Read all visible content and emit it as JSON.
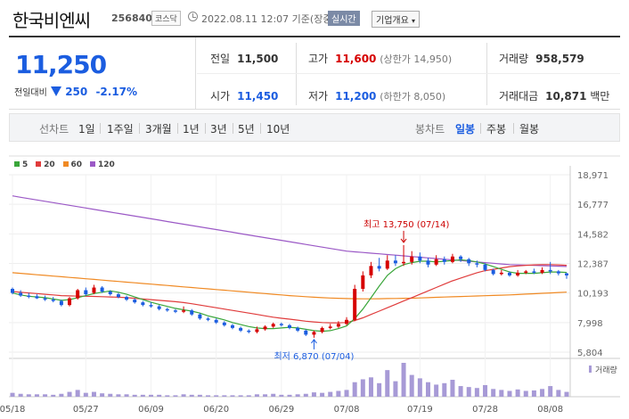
{
  "header": {
    "name": "한국비엔씨",
    "code": "256840",
    "market": "코스닥",
    "date": "2022.08.11 12:07 기준(장중)",
    "realtime": "실시간",
    "company_info": "기업개요"
  },
  "summary": {
    "price": "11,250",
    "change_label": "전일대비",
    "change": "250",
    "change_pct": "-2.17%",
    "prev_label": "전일",
    "prev": "11,500",
    "high_label": "고가",
    "high": "11,600",
    "upper_limit": "(상한가 14,950)",
    "volume_label": "거래량",
    "volume": "958,579",
    "open_label": "시가",
    "open": "11,450",
    "low_label": "저가",
    "low": "11,200",
    "lower_limit": "(하한가 8,050)",
    "amount_label": "거래대금",
    "amount": "10,871",
    "amount_unit": "백만"
  },
  "period_tabs": {
    "label": "선차트",
    "items": [
      "1일",
      "1주일",
      "3개월",
      "1년",
      "3년",
      "5년",
      "10년"
    ]
  },
  "candle_tabs": {
    "label": "봉차트",
    "items": [
      "일봉",
      "주봉",
      "월봉"
    ],
    "active": "일봉"
  },
  "colors": {
    "up": "#d60000",
    "down": "#1b5de0",
    "ma5": "#3aa63a",
    "ma20": "#e03c3c",
    "ma60": "#f08a24",
    "ma120": "#9b59c6"
  },
  "chart_data": {
    "type": "candlestick",
    "legend": [
      "5",
      "20",
      "60",
      "120"
    ],
    "y_ticks": [
      "18,971",
      "16,777",
      "14,582",
      "12,387",
      "10,193",
      "7,998",
      "5,804"
    ],
    "ylim": [
      5804,
      18971
    ],
    "x_ticks": [
      "05/18",
      "05/27",
      "06/09",
      "06/20",
      "06/29",
      "07/08",
      "07/19",
      "07/28",
      "08/08"
    ],
    "annotations": {
      "high": "최고 13,750 (07/14)",
      "low": "최저 6,870 (07/04)"
    },
    "volume_label": "거래량",
    "candles": [
      [
        10500,
        10200,
        10600,
        10100
      ],
      [
        10200,
        10000,
        10400,
        9900
      ],
      [
        10000,
        9900,
        10200,
        9800
      ],
      [
        9950,
        9800,
        10100,
        9750
      ],
      [
        9800,
        9700,
        10000,
        9600
      ],
      [
        9700,
        9600,
        9900,
        9500
      ],
      [
        9600,
        9300,
        9700,
        9200
      ],
      [
        9300,
        9800,
        9900,
        9200
      ],
      [
        9800,
        10400,
        10500,
        9700
      ],
      [
        10400,
        10100,
        10600,
        10000
      ],
      [
        10200,
        10600,
        10800,
        10100
      ],
      [
        10600,
        10300,
        10700,
        10200
      ],
      [
        10300,
        10100,
        10400,
        10000
      ],
      [
        10100,
        9900,
        10200,
        9800
      ],
      [
        9900,
        9700,
        10000,
        9600
      ],
      [
        9700,
        9500,
        9800,
        9400
      ],
      [
        9500,
        9300,
        9600,
        9200
      ],
      [
        9300,
        9200,
        9500,
        9100
      ],
      [
        9200,
        9000,
        9300,
        8900
      ],
      [
        9000,
        8900,
        9100,
        8800
      ],
      [
        8900,
        8800,
        9000,
        8700
      ],
      [
        8800,
        8900,
        9200,
        8700
      ],
      [
        8900,
        8600,
        9000,
        8500
      ],
      [
        8600,
        8300,
        8700,
        8200
      ],
      [
        8300,
        8200,
        8400,
        8100
      ],
      [
        8200,
        8000,
        8300,
        7900
      ],
      [
        8000,
        7800,
        8100,
        7700
      ],
      [
        7800,
        7600,
        7900,
        7500
      ],
      [
        7600,
        7400,
        7700,
        7300
      ],
      [
        7400,
        7300,
        7500,
        7200
      ],
      [
        7300,
        7500,
        7700,
        7200
      ],
      [
        7500,
        7700,
        7800,
        7400
      ],
      [
        7700,
        7900,
        8000,
        7600
      ],
      [
        7900,
        7800,
        8000,
        7700
      ],
      [
        7800,
        7600,
        7900,
        7500
      ],
      [
        7600,
        7400,
        7700,
        7300
      ],
      [
        7400,
        7100,
        7500,
        7000
      ],
      [
        7100,
        7300,
        7400,
        6870
      ],
      [
        7300,
        7600,
        7700,
        7200
      ],
      [
        7600,
        7700,
        7900,
        7500
      ],
      [
        7700,
        7900,
        8100,
        7600
      ],
      [
        7900,
        8200,
        8400,
        7800
      ],
      [
        8200,
        10500,
        10800,
        8100
      ],
      [
        10500,
        11500,
        11800,
        10300
      ],
      [
        11500,
        12200,
        12500,
        11300
      ],
      [
        12200,
        12000,
        12800,
        11800
      ],
      [
        12000,
        12600,
        13000,
        11900
      ],
      [
        12600,
        12400,
        13000,
        12200
      ],
      [
        12400,
        12500,
        13750,
        12200
      ],
      [
        12500,
        12900,
        13300,
        12300
      ],
      [
        12900,
        12600,
        13200,
        12400
      ],
      [
        12600,
        12300,
        12800,
        12100
      ],
      [
        12300,
        12700,
        13000,
        12200
      ],
      [
        12700,
        12500,
        12900,
        12300
      ],
      [
        12500,
        12900,
        13100,
        12400
      ],
      [
        12900,
        12700,
        13000,
        12500
      ],
      [
        12700,
        12400,
        12800,
        12200
      ],
      [
        12400,
        12300,
        12600,
        12100
      ],
      [
        12300,
        11900,
        12400,
        11800
      ],
      [
        11900,
        11600,
        12000,
        11500
      ],
      [
        11600,
        11700,
        11900,
        11500
      ],
      [
        11700,
        11500,
        11800,
        11400
      ],
      [
        11500,
        11700,
        11900,
        11400
      ],
      [
        11700,
        11800,
        11900,
        11600
      ],
      [
        11800,
        11700,
        12000,
        11600
      ],
      [
        11700,
        11900,
        12100,
        11600
      ],
      [
        11900,
        11800,
        12500,
        11600
      ],
      [
        11800,
        11650,
        11900,
        11500
      ],
      [
        11650,
        11500,
        11700,
        11250
      ]
    ],
    "ma5": [
      10200,
      10050,
      9950,
      9900,
      9850,
      9750,
      9650,
      9700,
      9850,
      10000,
      10150,
      10250,
      10350,
      10250,
      10100,
      9900,
      9700,
      9500,
      9350,
      9200,
      9050,
      8950,
      8850,
      8700,
      8500,
      8350,
      8200,
      8000,
      7850,
      7700,
      7600,
      7550,
      7550,
      7600,
      7650,
      7600,
      7500,
      7400,
      7350,
      7400,
      7550,
      7750,
      8300,
      9000,
      9850,
      10700,
      11500,
      12000,
      12300,
      12450,
      12550,
      12550,
      12500,
      12550,
      12600,
      12650,
      12600,
      12500,
      12350,
      12150,
      11950,
      11750,
      11650,
      11650,
      11650,
      11700,
      11750,
      11750,
      11720
    ],
    "ma20": [
      10300,
      10250,
      10200,
      10150,
      10100,
      10050,
      10000,
      9980,
      9960,
      9950,
      9940,
      9920,
      9900,
      9880,
      9850,
      9800,
      9750,
      9700,
      9650,
      9600,
      9550,
      9480,
      9400,
      9300,
      9200,
      9100,
      9000,
      8900,
      8800,
      8700,
      8600,
      8500,
      8400,
      8320,
      8250,
      8180,
      8100,
      8050,
      8000,
      7980,
      7980,
      8000,
      8150,
      8350,
      8600,
      8850,
      9100,
      9350,
      9600,
      9850,
      10100,
      10350,
      10600,
      10850,
      11100,
      11300,
      11500,
      11700,
      11850,
      11950,
      12050,
      12150,
      12200,
      12250,
      12280,
      12300,
      12300,
      12280,
      12250
    ],
    "ma60": [
      11700,
      11650,
      11600,
      11550,
      11500,
      11450,
      11400,
      11350,
      11300,
      11250,
      11200,
      11150,
      11100,
      11050,
      11000,
      10950,
      10900,
      10850,
      10800,
      10750,
      10700,
      10650,
      10600,
      10550,
      10500,
      10450,
      10400,
      10350,
      10300,
      10250,
      10200,
      10150,
      10100,
      10050,
      10000,
      9960,
      9920,
      9880,
      9850,
      9820,
      9800,
      9780,
      9770,
      9760,
      9760,
      9770,
      9780,
      9790,
      9800,
      9810,
      9830,
      9850,
      9870,
      9890,
      9910,
      9930,
      9950,
      9970,
      9990,
      10010,
      10030,
      10050,
      10080,
      10110,
      10140,
      10170,
      10200,
      10230,
      10260
    ],
    "ma120": [
      17400,
      17300,
      17200,
      17100,
      17000,
      16900,
      16800,
      16700,
      16600,
      16500,
      16400,
      16300,
      16200,
      16100,
      16000,
      15900,
      15800,
      15700,
      15600,
      15500,
      15400,
      15300,
      15200,
      15100,
      15000,
      14900,
      14800,
      14700,
      14600,
      14500,
      14400,
      14300,
      14200,
      14100,
      14000,
      13900,
      13800,
      13700,
      13600,
      13500,
      13400,
      13300,
      13250,
      13200,
      13150,
      13100,
      13050,
      13000,
      12950,
      12900,
      12850,
      12800,
      12750,
      12700,
      12650,
      12600,
      12550,
      12500,
      12450,
      12400,
      12350,
      12300,
      12280,
      12260,
      12240,
      12220,
      12200,
      12180,
      12160
    ],
    "volume": [
      8,
      6,
      5,
      5,
      5,
      4,
      6,
      10,
      14,
      8,
      10,
      7,
      6,
      5,
      5,
      4,
      4,
      4,
      4,
      3,
      3,
      5,
      4,
      4,
      3,
      3,
      3,
      3,
      3,
      3,
      5,
      5,
      6,
      4,
      4,
      5,
      6,
      9,
      8,
      10,
      12,
      14,
      30,
      36,
      40,
      28,
      55,
      32,
      70,
      45,
      38,
      30,
      25,
      28,
      35,
      22,
      20,
      18,
      24,
      16,
      14,
      12,
      15,
      12,
      13,
      16,
      22,
      14,
      10
    ]
  }
}
